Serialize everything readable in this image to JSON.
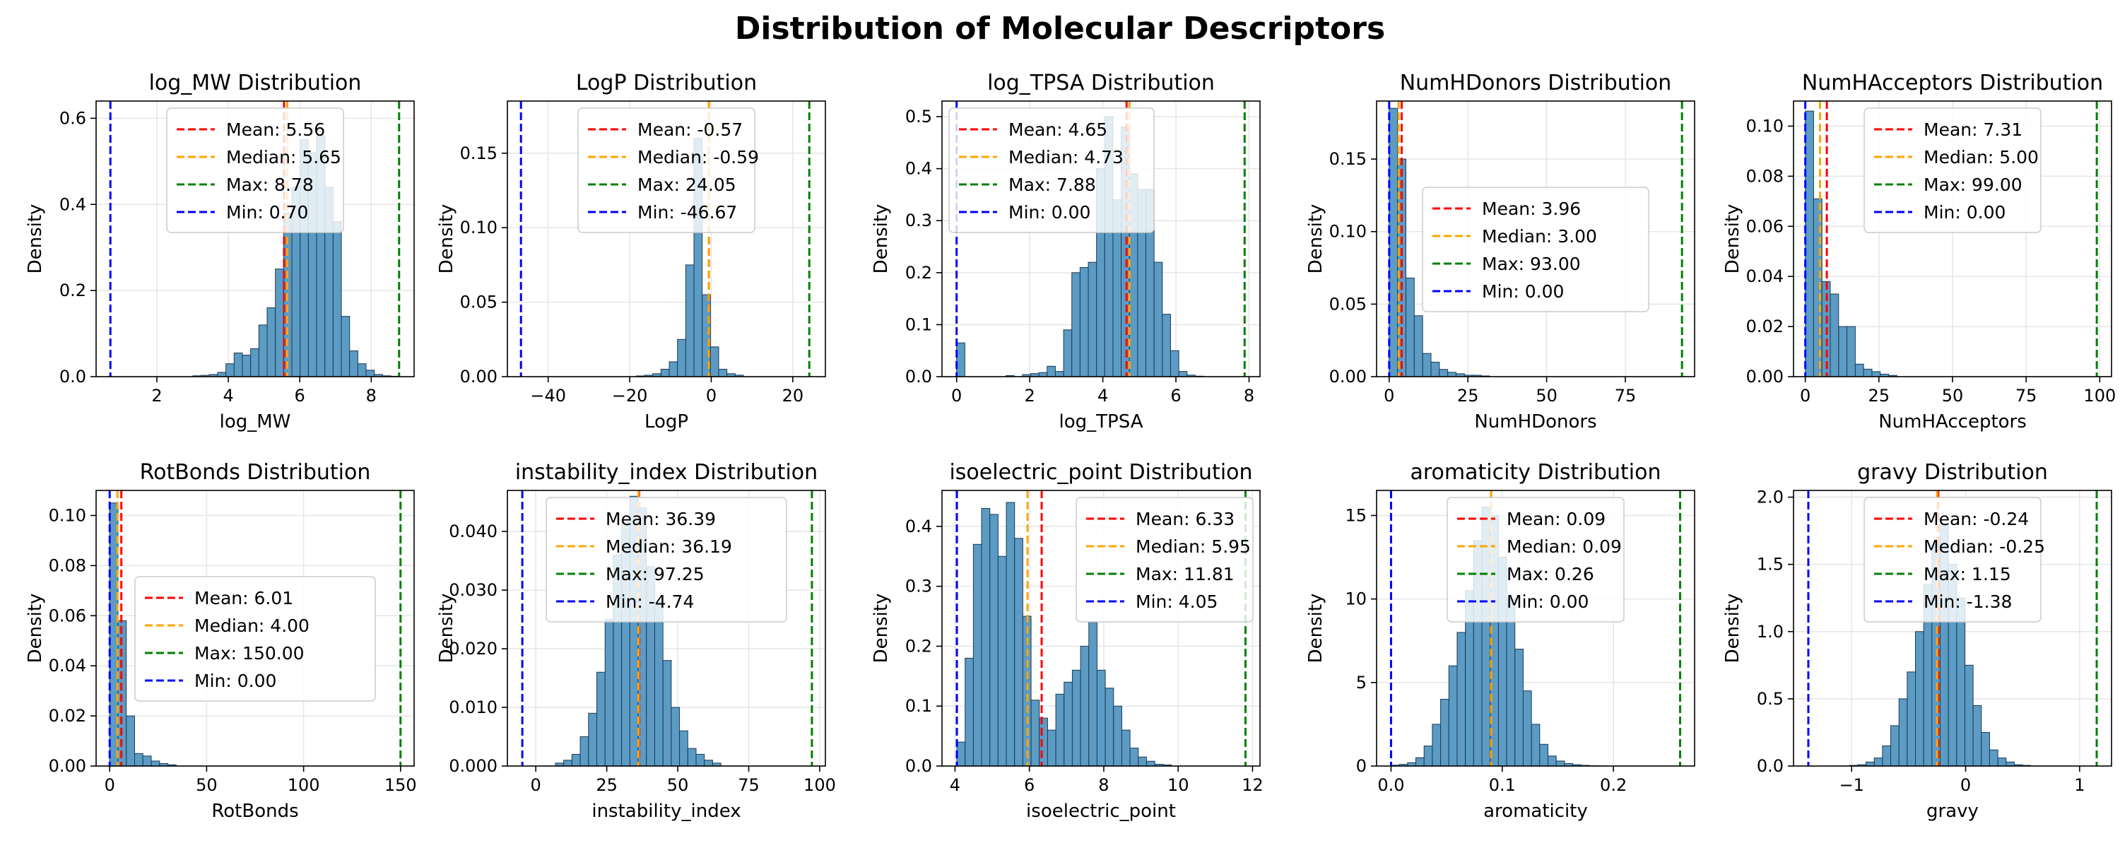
{
  "figure": {
    "title": "Distribution of Molecular Descriptors"
  },
  "colors": {
    "bar": "#5b9bc4",
    "bar_edge": "#1f3a52",
    "mean": "#ff0000",
    "median": "#ffa500",
    "max": "#008000",
    "min": "#0000ff",
    "grid": "#e6e6e6"
  },
  "chart_data": [
    {
      "type": "bar",
      "title": "log_MW Distribution",
      "xlabel": "log_MW",
      "ylabel": "Density",
      "xlim": [
        0.3,
        9.2
      ],
      "ylim": [
        0,
        0.64
      ],
      "xticks": [
        2,
        4,
        6,
        8
      ],
      "xtick_labels": [
        "2",
        "4",
        "6",
        "8"
      ],
      "yticks": [
        0,
        0.2,
        0.4,
        0.6
      ],
      "ytick_labels": [
        "0.0",
        "0.2",
        "0.4",
        "0.6"
      ],
      "bins": {
        "start": 0.7,
        "end": 8.78,
        "density": [
          0,
          0,
          0,
          0,
          0,
          0,
          0,
          0,
          0,
          0,
          0.002,
          0.003,
          0.005,
          0.01,
          0.03,
          0.055,
          0.05,
          0.065,
          0.12,
          0.16,
          0.25,
          0.38,
          0.44,
          0.55,
          0.52,
          0.56,
          0.44,
          0.36,
          0.14,
          0.06,
          0.03,
          0.015,
          0.005,
          0.002,
          0.001
        ]
      },
      "stats": {
        "mean": 5.56,
        "median": 5.65,
        "max": 8.78,
        "min": 0.7
      },
      "legend": [
        "Mean: 5.56",
        "Median: 5.65",
        "Max: 8.78",
        "Min: 0.70"
      ],
      "legend_position": "top-center"
    },
    {
      "type": "bar",
      "title": "LogP Distribution",
      "xlabel": "LogP",
      "ylabel": "Density",
      "xlim": [
        -50,
        28
      ],
      "ylim": [
        0,
        0.185
      ],
      "xticks": [
        -40,
        -20,
        0,
        20
      ],
      "xtick_labels": [
        "−40",
        "−20",
        "0",
        "20"
      ],
      "yticks": [
        0,
        0.05,
        0.1,
        0.15
      ],
      "ytick_labels": [
        "0.00",
        "0.05",
        "0.10",
        "0.15"
      ],
      "bins": {
        "start": -46.67,
        "end": 24.05,
        "density": [
          0,
          0,
          0,
          0,
          0,
          0,
          0,
          0,
          0,
          0,
          0,
          0,
          0,
          0,
          0.0005,
          0.001,
          0.002,
          0.005,
          0.01,
          0.025,
          0.075,
          0.16,
          0.055,
          0.02,
          0.005,
          0.002,
          0.001,
          0,
          0,
          0,
          0,
          0,
          0,
          0,
          0
        ]
      },
      "stats": {
        "mean": -0.57,
        "median": -0.59,
        "max": 24.05,
        "min": -46.67
      },
      "legend": [
        "Mean: -0.57",
        "Median: -0.59",
        "Max: 24.05",
        "Min: -46.67"
      ],
      "legend_position": "top-center"
    },
    {
      "type": "bar",
      "title": "log_TPSA Distribution",
      "xlabel": "log_TPSA",
      "ylabel": "Density",
      "xlim": [
        -0.4,
        8.3
      ],
      "ylim": [
        0,
        0.53
      ],
      "xticks": [
        0,
        2,
        4,
        6,
        8
      ],
      "xtick_labels": [
        "0",
        "2",
        "4",
        "6",
        "8"
      ],
      "yticks": [
        0,
        0.1,
        0.2,
        0.3,
        0.4,
        0.5
      ],
      "ytick_labels": [
        "0.0",
        "0.1",
        "0.2",
        "0.3",
        "0.4",
        "0.5"
      ],
      "bins": {
        "start": 0.0,
        "end": 7.88,
        "density": [
          0.065,
          0,
          0,
          0,
          0,
          0,
          0.002,
          0,
          0.004,
          0.006,
          0.008,
          0.02,
          0.01,
          0.09,
          0.2,
          0.21,
          0.22,
          0.4,
          0.5,
          0.34,
          0.48,
          0.39,
          0.36,
          0.36,
          0.22,
          0.12,
          0.05,
          0.01,
          0.003,
          0.001,
          0,
          0,
          0,
          0,
          0
        ]
      },
      "stats": {
        "mean": 4.65,
        "median": 4.73,
        "max": 7.88,
        "min": 0.0
      },
      "legend": [
        "Mean: 4.65",
        "Median: 4.73",
        "Max: 7.88",
        "Min: 0.00"
      ],
      "legend_position": "top-left"
    },
    {
      "type": "bar",
      "title": "NumHDonors Distribution",
      "xlabel": "NumHDonors",
      "ylabel": "Density",
      "xlim": [
        -4,
        97
      ],
      "ylim": [
        0,
        0.19
      ],
      "xticks": [
        0,
        25,
        50,
        75
      ],
      "xtick_labels": [
        "0",
        "25",
        "50",
        "75"
      ],
      "yticks": [
        0,
        0.05,
        0.1,
        0.15
      ],
      "ytick_labels": [
        "0.00",
        "0.05",
        "0.10",
        "0.15"
      ],
      "bins": {
        "start": 0.0,
        "end": 93.0,
        "density": [
          0.185,
          0.15,
          0.068,
          0.042,
          0.016,
          0.01,
          0.005,
          0.003,
          0.002,
          0.001,
          0.001,
          0.0005,
          0,
          0,
          0,
          0,
          0,
          0,
          0,
          0,
          0,
          0,
          0,
          0,
          0,
          0,
          0,
          0,
          0,
          0,
          0,
          0,
          0,
          0,
          0
        ]
      },
      "stats": {
        "mean": 3.96,
        "median": 3.0,
        "max": 93.0,
        "min": 0.0
      },
      "legend": [
        "Mean: 3.96",
        "Median: 3.00",
        "Max: 93.00",
        "Min: 0.00"
      ],
      "legend_position": "center"
    },
    {
      "type": "bar",
      "title": "NumHAcceptors Distribution",
      "xlabel": "NumHAcceptors",
      "ylabel": "Density",
      "xlim": [
        -4,
        104
      ],
      "ylim": [
        0,
        0.11
      ],
      "xticks": [
        0,
        25,
        50,
        75,
        100
      ],
      "xtick_labels": [
        "0",
        "25",
        "50",
        "75",
        "100"
      ],
      "yticks": [
        0,
        0.02,
        0.04,
        0.06,
        0.08,
        0.1
      ],
      "ytick_labels": [
        "0.00",
        "0.02",
        "0.04",
        "0.06",
        "0.08",
        "0.10"
      ],
      "bins": {
        "start": 0.0,
        "end": 99.0,
        "density": [
          0.106,
          0.071,
          0.038,
          0.033,
          0.02,
          0.02,
          0.005,
          0.003,
          0.002,
          0.001,
          0.0005,
          0,
          0,
          0,
          0,
          0,
          0,
          0,
          0,
          0,
          0,
          0,
          0,
          0,
          0,
          0,
          0,
          0,
          0,
          0,
          0,
          0,
          0,
          0,
          0
        ]
      },
      "stats": {
        "mean": 7.31,
        "median": 5.0,
        "max": 99.0,
        "min": 0.0
      },
      "legend": [
        "Mean: 7.31",
        "Median: 5.00",
        "Max: 99.00",
        "Min: 0.00"
      ],
      "legend_position": "top-center"
    },
    {
      "type": "bar",
      "title": "RotBonds Distribution",
      "xlabel": "RotBonds",
      "ylabel": "Density",
      "xlim": [
        -7,
        157
      ],
      "ylim": [
        0,
        0.11
      ],
      "xticks": [
        0,
        50,
        100,
        150
      ],
      "xtick_labels": [
        "0",
        "50",
        "100",
        "150"
      ],
      "yticks": [
        0,
        0.02,
        0.04,
        0.06,
        0.08,
        0.1
      ],
      "ytick_labels": [
        "0.00",
        "0.02",
        "0.04",
        "0.06",
        "0.08",
        "0.10"
      ],
      "bins": {
        "start": 0.0,
        "end": 150.0,
        "density": [
          0.105,
          0.058,
          0.02,
          0.005,
          0.004,
          0.002,
          0.001,
          0.0005,
          0,
          0,
          0,
          0,
          0,
          0,
          0,
          0,
          0,
          0,
          0,
          0,
          0,
          0,
          0,
          0,
          0,
          0,
          0,
          0,
          0,
          0,
          0,
          0,
          0,
          0,
          0
        ]
      },
      "stats": {
        "mean": 6.01,
        "median": 4.0,
        "max": 150.0,
        "min": 0.0
      },
      "legend": [
        "Mean: 6.01",
        "Median: 4.00",
        "Max: 150.00",
        "Min: 0.00"
      ],
      "legend_position": "center"
    },
    {
      "type": "bar",
      "title": "instability_index Distribution",
      "xlabel": "instability_index",
      "ylabel": "Density",
      "xlim": [
        -10,
        102
      ],
      "ylim": [
        0,
        0.047
      ],
      "xticks": [
        0,
        25,
        50,
        75,
        100
      ],
      "xtick_labels": [
        "0",
        "25",
        "50",
        "75",
        "100"
      ],
      "yticks": [
        0,
        0.01,
        0.02,
        0.03,
        0.04
      ],
      "ytick_labels": [
        "0.000",
        "0.010",
        "0.020",
        "0.030",
        "0.040"
      ],
      "bins": {
        "start": -4.74,
        "end": 97.25,
        "density": [
          0,
          0,
          0,
          0,
          0.0005,
          0.001,
          0.002,
          0.005,
          0.009,
          0.016,
          0.025,
          0.036,
          0.042,
          0.046,
          0.044,
          0.034,
          0.028,
          0.018,
          0.01,
          0.006,
          0.003,
          0.002,
          0.001,
          0.0005,
          0,
          0,
          0,
          0,
          0,
          0,
          0,
          0,
          0,
          0,
          0
        ]
      },
      "stats": {
        "mean": 36.39,
        "median": 36.19,
        "max": 97.25,
        "min": -4.74
      },
      "legend": [
        "Mean: 36.39",
        "Median: 36.19",
        "Max: 97.25",
        "Min: -4.74"
      ],
      "legend_position": "top-center"
    },
    {
      "type": "bar",
      "title": "isoelectric_point Distribution",
      "xlabel": "isoelectric_point",
      "ylabel": "Density",
      "xlim": [
        3.65,
        12.2
      ],
      "ylim": [
        0,
        0.46
      ],
      "xticks": [
        4,
        6,
        8,
        10,
        12
      ],
      "xtick_labels": [
        "4",
        "6",
        "8",
        "10",
        "12"
      ],
      "yticks": [
        0,
        0.1,
        0.2,
        0.3,
        0.4
      ],
      "ytick_labels": [
        "0.0",
        "0.1",
        "0.2",
        "0.3",
        "0.4"
      ],
      "bins": {
        "start": 4.05,
        "end": 11.81,
        "density": [
          0.04,
          0.18,
          0.37,
          0.43,
          0.42,
          0.35,
          0.44,
          0.38,
          0.25,
          0.11,
          0.08,
          0.06,
          0.12,
          0.14,
          0.16,
          0.2,
          0.24,
          0.16,
          0.13,
          0.1,
          0.06,
          0.03,
          0.015,
          0.008,
          0.003,
          0.002,
          0,
          0,
          0,
          0,
          0,
          0,
          0,
          0,
          0
        ]
      },
      "stats": {
        "mean": 6.33,
        "median": 5.95,
        "max": 11.81,
        "min": 4.05
      },
      "legend": [
        "Mean: 6.33",
        "Median: 5.95",
        "Max: 11.81",
        "Min: 4.05"
      ],
      "legend_position": "top-right"
    },
    {
      "type": "bar",
      "title": "aromaticity Distribution",
      "xlabel": "aromaticity",
      "ylabel": "Density",
      "xlim": [
        -0.013,
        0.273
      ],
      "ylim": [
        0,
        16.5
      ],
      "xticks": [
        0,
        0.1,
        0.2
      ],
      "xtick_labels": [
        "0.0",
        "0.1",
        "0.2"
      ],
      "yticks": [
        0,
        5,
        10,
        15
      ],
      "ytick_labels": [
        "0",
        "5",
        "10",
        "15"
      ],
      "bins": {
        "start": 0.0,
        "end": 0.26,
        "density": [
          0.05,
          0.1,
          0.2,
          0.5,
          1.2,
          2.5,
          4.0,
          6.0,
          8.0,
          10.5,
          13.5,
          15.5,
          15.0,
          12.5,
          10.0,
          7.0,
          4.5,
          2.5,
          1.3,
          0.6,
          0.3,
          0.15,
          0.08,
          0.04,
          0.02,
          0.01,
          0,
          0,
          0,
          0,
          0,
          0,
          0,
          0,
          0
        ]
      },
      "stats": {
        "mean": 0.09,
        "median": 0.09,
        "max": 0.26,
        "min": 0.0
      },
      "legend": [
        "Mean: 0.09",
        "Median: 0.09",
        "Max: 0.26",
        "Min: 0.00"
      ],
      "legend_position": "top-center"
    },
    {
      "type": "bar",
      "title": "gravy Distribution",
      "xlabel": "gravy",
      "ylabel": "Density",
      "xlim": [
        -1.51,
        1.28
      ],
      "ylim": [
        0,
        2.05
      ],
      "xticks": [
        -1,
        0,
        1
      ],
      "xtick_labels": [
        "−1",
        "0",
        "1"
      ],
      "yticks": [
        0,
        0.5,
        1,
        1.5,
        2
      ],
      "ytick_labels": [
        "0.0",
        "0.5",
        "1.0",
        "1.5",
        "2.0"
      ],
      "bins": {
        "start": -1.38,
        "end": 1.15,
        "density": [
          0,
          0,
          0,
          0,
          0,
          0.005,
          0.01,
          0.03,
          0.06,
          0.15,
          0.3,
          0.5,
          0.7,
          1.0,
          1.35,
          1.65,
          1.8,
          1.5,
          1.25,
          0.75,
          0.45,
          0.25,
          0.12,
          0.06,
          0.03,
          0.01,
          0.005,
          0,
          0,
          0,
          0,
          0,
          0,
          0,
          0
        ]
      },
      "stats": {
        "mean": -0.24,
        "median": -0.25,
        "max": 1.15,
        "min": -1.38
      },
      "legend": [
        "Mean: -0.24",
        "Median: -0.25",
        "Max: 1.15",
        "Min: -1.38"
      ],
      "legend_position": "top-center"
    }
  ]
}
